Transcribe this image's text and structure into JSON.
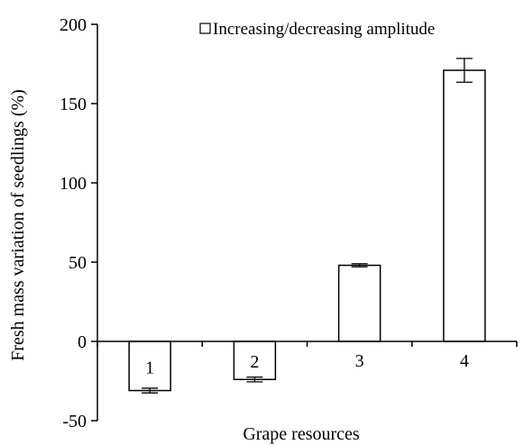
{
  "chart_data": {
    "type": "bar",
    "categories": [
      "1",
      "2",
      "3",
      "4"
    ],
    "series": [
      {
        "name": "Increasing/decreasing amplitude",
        "values": [
          -31,
          -24,
          48,
          171
        ],
        "errors": [
          1.5,
          1.5,
          1.0,
          7.5
        ]
      }
    ],
    "title": "",
    "xlabel": "Grape resources",
    "ylabel": "Fresh mass variation of  seedlings (%)",
    "ylim": [
      -50,
      200
    ],
    "yticks": [
      -50,
      0,
      50,
      100,
      150,
      200
    ],
    "grid": false,
    "legend_position": "top-right",
    "colors": {
      "bar_fill": "#ffffff",
      "bar_stroke": "#000000",
      "axis": "#000000"
    }
  }
}
